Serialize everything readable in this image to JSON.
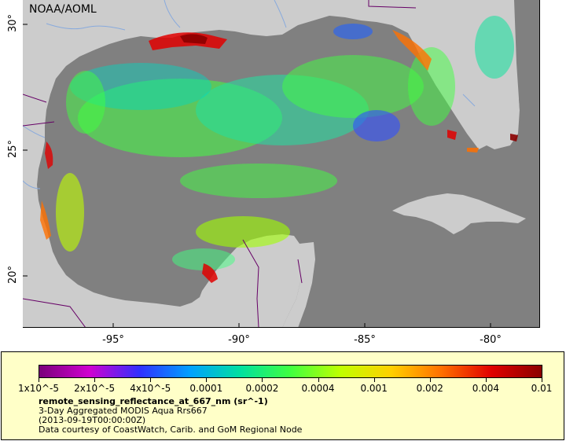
{
  "map": {
    "credit": "NOAA/AOML",
    "lat_ticks": [
      "30°",
      "25°",
      "20°"
    ],
    "lon_ticks": [
      "-95°",
      "-90°",
      "-85°",
      "-80°"
    ],
    "colors": {
      "land": "#cccccc",
      "water_nodata": "#808080",
      "rivers": "#88aadd",
      "borders": "#660066"
    }
  },
  "legend": {
    "colorbar_stops": [
      "#7a007a",
      "#d000d0",
      "#3030ff",
      "#00a0ff",
      "#00e0a0",
      "#40ff40",
      "#c0ff00",
      "#ffd000",
      "#ff7000",
      "#e00000",
      "#8b0000"
    ],
    "ticks": [
      "1x10^-5",
      "2x10^-5",
      "4x10^-5",
      "0.0001",
      "0.0002",
      "0.0004",
      "0.001",
      "0.002",
      "0.004",
      "0.01"
    ],
    "variable": "remote_sensing_reflectance_at_667_nm (sr^-1)",
    "description": "3-Day Aggregated MODIS Aqua Rrs667",
    "time": "(2013-09-19T00:00:00Z)",
    "courtesy": "Data courtesy of CoastWatch, Carib. and GoM Regional Node"
  }
}
